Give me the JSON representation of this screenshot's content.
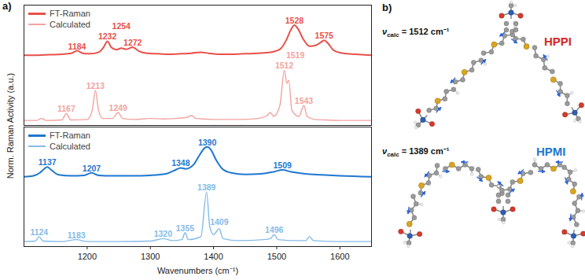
{
  "chart_data": [
    {
      "type": "line",
      "panel_label": "a)",
      "y_label": "Norm. Raman Activity (a.u.)",
      "xlim": [
        1100,
        1650
      ],
      "ylim": [
        0,
        1.2
      ],
      "tick_labels": false,
      "legend": "top-left",
      "series": [
        {
          "name": "FT-Raman",
          "color": "#e8504a",
          "x": [
            1100,
            1120,
            1140,
            1160,
            1175,
            1184,
            1193,
            1205,
            1218,
            1226,
            1232,
            1238,
            1246,
            1254,
            1262,
            1272,
            1282,
            1295,
            1310,
            1330,
            1350,
            1365,
            1380,
            1392,
            1410,
            1430,
            1450,
            1470,
            1490,
            1505,
            1515,
            1522,
            1528,
            1534,
            1542,
            1552,
            1562,
            1570,
            1575,
            1581,
            1590,
            1605,
            1625,
            1650
          ],
          "values": [
            0.7,
            0.7,
            0.705,
            0.71,
            0.72,
            0.745,
            0.72,
            0.715,
            0.73,
            0.78,
            0.84,
            0.78,
            0.755,
            0.77,
            0.76,
            0.78,
            0.74,
            0.72,
            0.715,
            0.71,
            0.715,
            0.72,
            0.73,
            0.72,
            0.71,
            0.71,
            0.715,
            0.72,
            0.73,
            0.76,
            0.85,
            0.95,
            1.0,
            0.96,
            0.86,
            0.79,
            0.8,
            0.83,
            0.85,
            0.82,
            0.75,
            0.72,
            0.71,
            0.7
          ],
          "peak_labels": [
            "1184",
            "1232",
            "1254",
            "1272",
            "1528",
            "1575"
          ]
        },
        {
          "name": "Calculated",
          "color": "#f2a3a0",
          "x": [
            1100,
            1120,
            1128,
            1135,
            1160,
            1167,
            1174,
            1200,
            1208,
            1213,
            1218,
            1225,
            1240,
            1249,
            1256,
            1275,
            1300,
            1320,
            1340,
            1358,
            1365,
            1372,
            1400,
            1440,
            1470,
            1485,
            1490,
            1495,
            1505,
            1512,
            1516,
            1519,
            1524,
            1535,
            1543,
            1548,
            1560,
            1575,
            1600,
            1650
          ],
          "values": [
            0.05,
            0.05,
            0.07,
            0.05,
            0.055,
            0.12,
            0.055,
            0.06,
            0.15,
            0.35,
            0.15,
            0.07,
            0.07,
            0.13,
            0.07,
            0.06,
            0.07,
            0.065,
            0.07,
            0.08,
            0.1,
            0.07,
            0.06,
            0.06,
            0.07,
            0.1,
            0.13,
            0.09,
            0.2,
            0.55,
            0.42,
            0.45,
            0.15,
            0.09,
            0.2,
            0.09,
            0.06,
            0.055,
            0.05,
            0.05
          ],
          "peak_labels": [
            "1167",
            "1213",
            "1249",
            "1512",
            "1519",
            "1543"
          ]
        }
      ]
    },
    {
      "type": "line",
      "x_label": "Wavenumbers (cm⁻¹)",
      "xlim": [
        1100,
        1650
      ],
      "xticks": [
        1200,
        1300,
        1400,
        1500,
        1600
      ],
      "ylim": [
        0,
        1.2
      ],
      "tick_labels": "x",
      "legend": "top-left",
      "series": [
        {
          "name": "FT-Raman",
          "color": "#1f77d0",
          "x": [
            1100,
            1115,
            1125,
            1132,
            1137,
            1143,
            1155,
            1175,
            1195,
            1207,
            1218,
            1240,
            1270,
            1300,
            1325,
            1340,
            1348,
            1356,
            1368,
            1378,
            1386,
            1390,
            1396,
            1404,
            1414,
            1428,
            1450,
            1475,
            1495,
            1509,
            1523,
            1545,
            1570,
            1600,
            1650
          ],
          "values": [
            0.7,
            0.71,
            0.74,
            0.78,
            0.8,
            0.77,
            0.72,
            0.71,
            0.715,
            0.74,
            0.715,
            0.71,
            0.71,
            0.715,
            0.73,
            0.77,
            0.79,
            0.78,
            0.82,
            0.92,
            0.99,
            1.0,
            0.97,
            0.87,
            0.78,
            0.74,
            0.725,
            0.73,
            0.75,
            0.77,
            0.75,
            0.73,
            0.72,
            0.71,
            0.7
          ],
          "peak_labels": [
            "1137",
            "1207",
            "1348",
            "1390",
            "1509"
          ]
        },
        {
          "name": "Calculated",
          "color": "#86bbe8",
          "x": [
            1100,
            1118,
            1124,
            1130,
            1160,
            1183,
            1200,
            1250,
            1300,
            1320,
            1335,
            1350,
            1355,
            1360,
            1380,
            1389,
            1394,
            1400,
            1409,
            1415,
            1440,
            1480,
            1490,
            1496,
            1502,
            1530,
            1546,
            1552,
            1558,
            1600,
            1650
          ],
          "values": [
            0.05,
            0.055,
            0.1,
            0.055,
            0.05,
            0.07,
            0.05,
            0.05,
            0.055,
            0.08,
            0.06,
            0.07,
            0.14,
            0.07,
            0.1,
            0.55,
            0.2,
            0.12,
            0.18,
            0.08,
            0.06,
            0.07,
            0.08,
            0.12,
            0.07,
            0.06,
            0.06,
            0.1,
            0.06,
            0.05,
            0.05
          ],
          "peak_labels": [
            "1124",
            "1183",
            "1320",
            "1355",
            "1389",
            "1409",
            "1496"
          ]
        }
      ]
    }
  ],
  "diagram": {
    "panel_label": "b)",
    "molecules": [
      {
        "name": "HPPI",
        "color": "#d62828",
        "mode_label": {
          "symbol": "ν",
          "subscript": "calc",
          "text": " = 1512 cm⁻¹"
        }
      },
      {
        "name": "HPMI",
        "color": "#1f77d0",
        "mode_label": {
          "symbol": "ν",
          "subscript": "calc",
          "text": " = 1389 cm⁻¹"
        }
      }
    ]
  }
}
